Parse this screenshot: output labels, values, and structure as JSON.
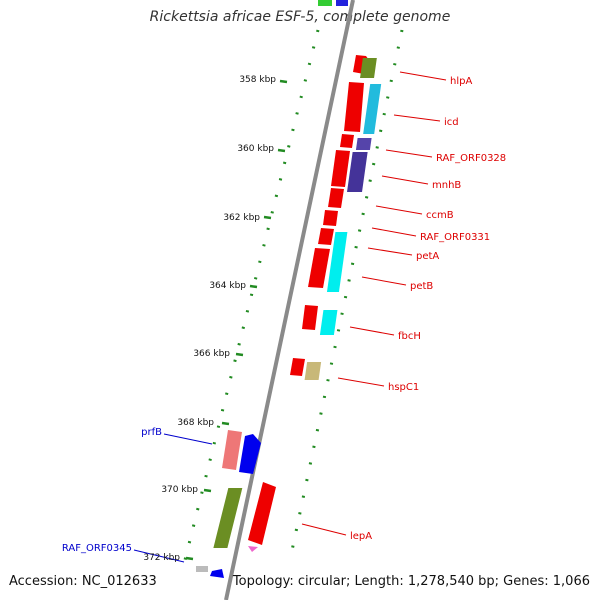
{
  "title": "Rickettsia africae ESF-5, complete genome",
  "footer": {
    "accession": "Accession: NC_012633",
    "topology": "Topology: circular; Length: 1,278,540 bp; Genes: 1,066"
  },
  "colors": {
    "backbone": "#8a8a8a",
    "tick_dots": "#228b22",
    "forward_label": "#dd0000",
    "reverse_label": "#0000cc"
  },
  "ticks": [
    {
      "label": "358 kbp"
    },
    {
      "label": "360 kbp"
    },
    {
      "label": "362 kbp"
    },
    {
      "label": "364 kbp"
    },
    {
      "label": "366 kbp"
    },
    {
      "label": "368 kbp"
    },
    {
      "label": "370 kbp"
    },
    {
      "label": "372 kbp"
    }
  ],
  "gene_labels": [
    {
      "name": "hlpA",
      "strand": "forward"
    },
    {
      "name": "icd",
      "strand": "forward"
    },
    {
      "name": "RAF_ORF0328",
      "strand": "forward"
    },
    {
      "name": "mnhB",
      "strand": "forward"
    },
    {
      "name": "ccmB",
      "strand": "forward"
    },
    {
      "name": "RAF_ORF0331",
      "strand": "forward"
    },
    {
      "name": "petA",
      "strand": "forward"
    },
    {
      "name": "petB",
      "strand": "forward"
    },
    {
      "name": "fbcH",
      "strand": "forward"
    },
    {
      "name": "hspC1",
      "strand": "forward"
    },
    {
      "name": "lepA",
      "strand": "forward"
    },
    {
      "name": "prfB",
      "strand": "reverse"
    },
    {
      "name": "RAF_ORF0345",
      "strand": "reverse"
    }
  ]
}
